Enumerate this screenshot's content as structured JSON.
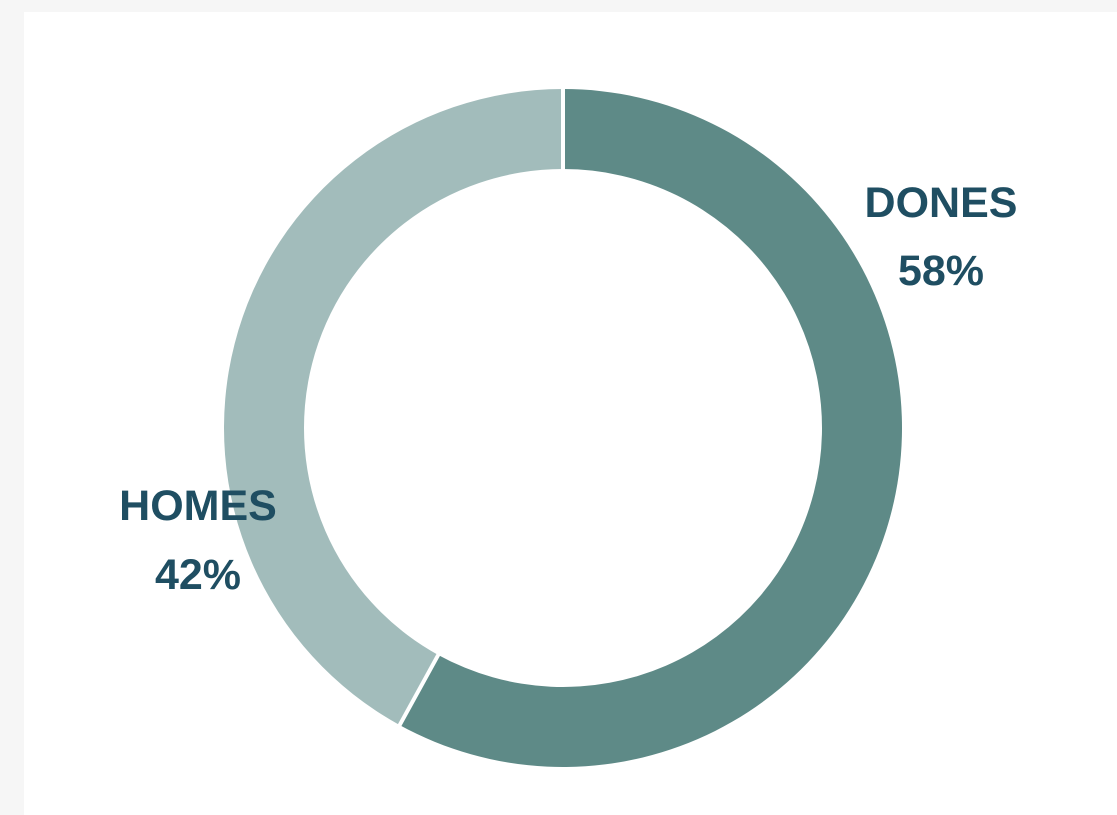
{
  "chart_data": {
    "type": "pie",
    "variant": "donut",
    "start_angle_deg": 0,
    "direction": "clockwise",
    "segments": [
      {
        "name": "DONES",
        "value": 58,
        "value_label": "58%",
        "color": "#5e8a87"
      },
      {
        "name": "HOMES",
        "value": 42,
        "value_label": "42%",
        "color": "#a2bcbb"
      }
    ],
    "separator_color": "#ffffff",
    "label_color": "#1f4e62",
    "title": "",
    "legend": "none"
  }
}
